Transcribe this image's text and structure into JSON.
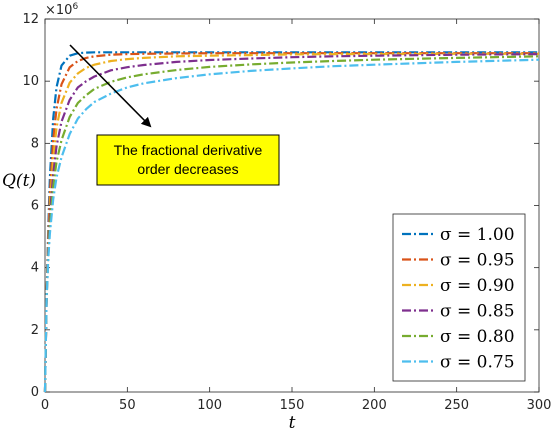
{
  "chart_data": {
    "type": "line",
    "xlabel": "t",
    "ylabel": "Q(t)",
    "y_multiplier": "×10",
    "y_multiplier_exp": "6",
    "xlim": [
      0,
      300
    ],
    "ylim": [
      0,
      12
    ],
    "xticks": [
      0,
      50,
      100,
      150,
      200,
      250,
      300
    ],
    "yticks": [
      0,
      2,
      4,
      6,
      8,
      10,
      12
    ],
    "grid": false,
    "legend_position": "bottom-right",
    "x": [
      0,
      1,
      2,
      3,
      5,
      7,
      10,
      15,
      20,
      25,
      30,
      40,
      50,
      60,
      80,
      100,
      125,
      150,
      175,
      200,
      250,
      300
    ],
    "series": [
      {
        "name": "σ = 1.00",
        "color": "#0072BD",
        "values": [
          0,
          3.1,
          5.3,
          6.9,
          8.8,
          9.8,
          10.5,
          10.82,
          10.9,
          10.92,
          10.93,
          10.93,
          10.93,
          10.93,
          10.93,
          10.93,
          10.93,
          10.93,
          10.93,
          10.93,
          10.93,
          10.93
        ]
      },
      {
        "name": "σ = 0.95",
        "color": "#D95319",
        "values": [
          0,
          3.1,
          5.0,
          6.4,
          8.1,
          9.1,
          9.9,
          10.45,
          10.65,
          10.75,
          10.8,
          10.85,
          10.87,
          10.88,
          10.89,
          10.9,
          10.9,
          10.9,
          10.9,
          10.9,
          10.9,
          10.9
        ]
      },
      {
        "name": "σ = 0.90",
        "color": "#EDB120",
        "values": [
          0,
          3.1,
          4.8,
          6.0,
          7.5,
          8.5,
          9.3,
          9.95,
          10.25,
          10.43,
          10.53,
          10.65,
          10.71,
          10.75,
          10.8,
          10.82,
          10.84,
          10.86,
          10.87,
          10.87,
          10.88,
          10.88
        ]
      },
      {
        "name": "σ = 0.85",
        "color": "#7E2F8E",
        "values": [
          0,
          3.0,
          4.6,
          5.7,
          7.0,
          7.9,
          8.7,
          9.4,
          9.8,
          10.0,
          10.15,
          10.35,
          10.45,
          10.52,
          10.62,
          10.68,
          10.73,
          10.77,
          10.8,
          10.82,
          10.85,
          10.87
        ]
      },
      {
        "name": "σ = 0.80",
        "color": "#77AC30",
        "values": [
          0,
          3.0,
          4.4,
          5.4,
          6.6,
          7.4,
          8.1,
          8.85,
          9.3,
          9.55,
          9.75,
          9.98,
          10.12,
          10.22,
          10.36,
          10.46,
          10.54,
          10.6,
          10.65,
          10.69,
          10.75,
          10.8
        ]
      },
      {
        "name": "σ = 0.75",
        "color": "#4DBEEE",
        "values": [
          0,
          3.0,
          4.3,
          5.1,
          6.2,
          6.9,
          7.55,
          8.3,
          8.8,
          9.1,
          9.33,
          9.6,
          9.8,
          9.93,
          10.1,
          10.22,
          10.33,
          10.41,
          10.48,
          10.53,
          10.62,
          10.69
        ]
      }
    ],
    "annotation": {
      "line1": "The fractional derivative",
      "line2": "order decreases",
      "box_color": "#FFFF00"
    }
  }
}
